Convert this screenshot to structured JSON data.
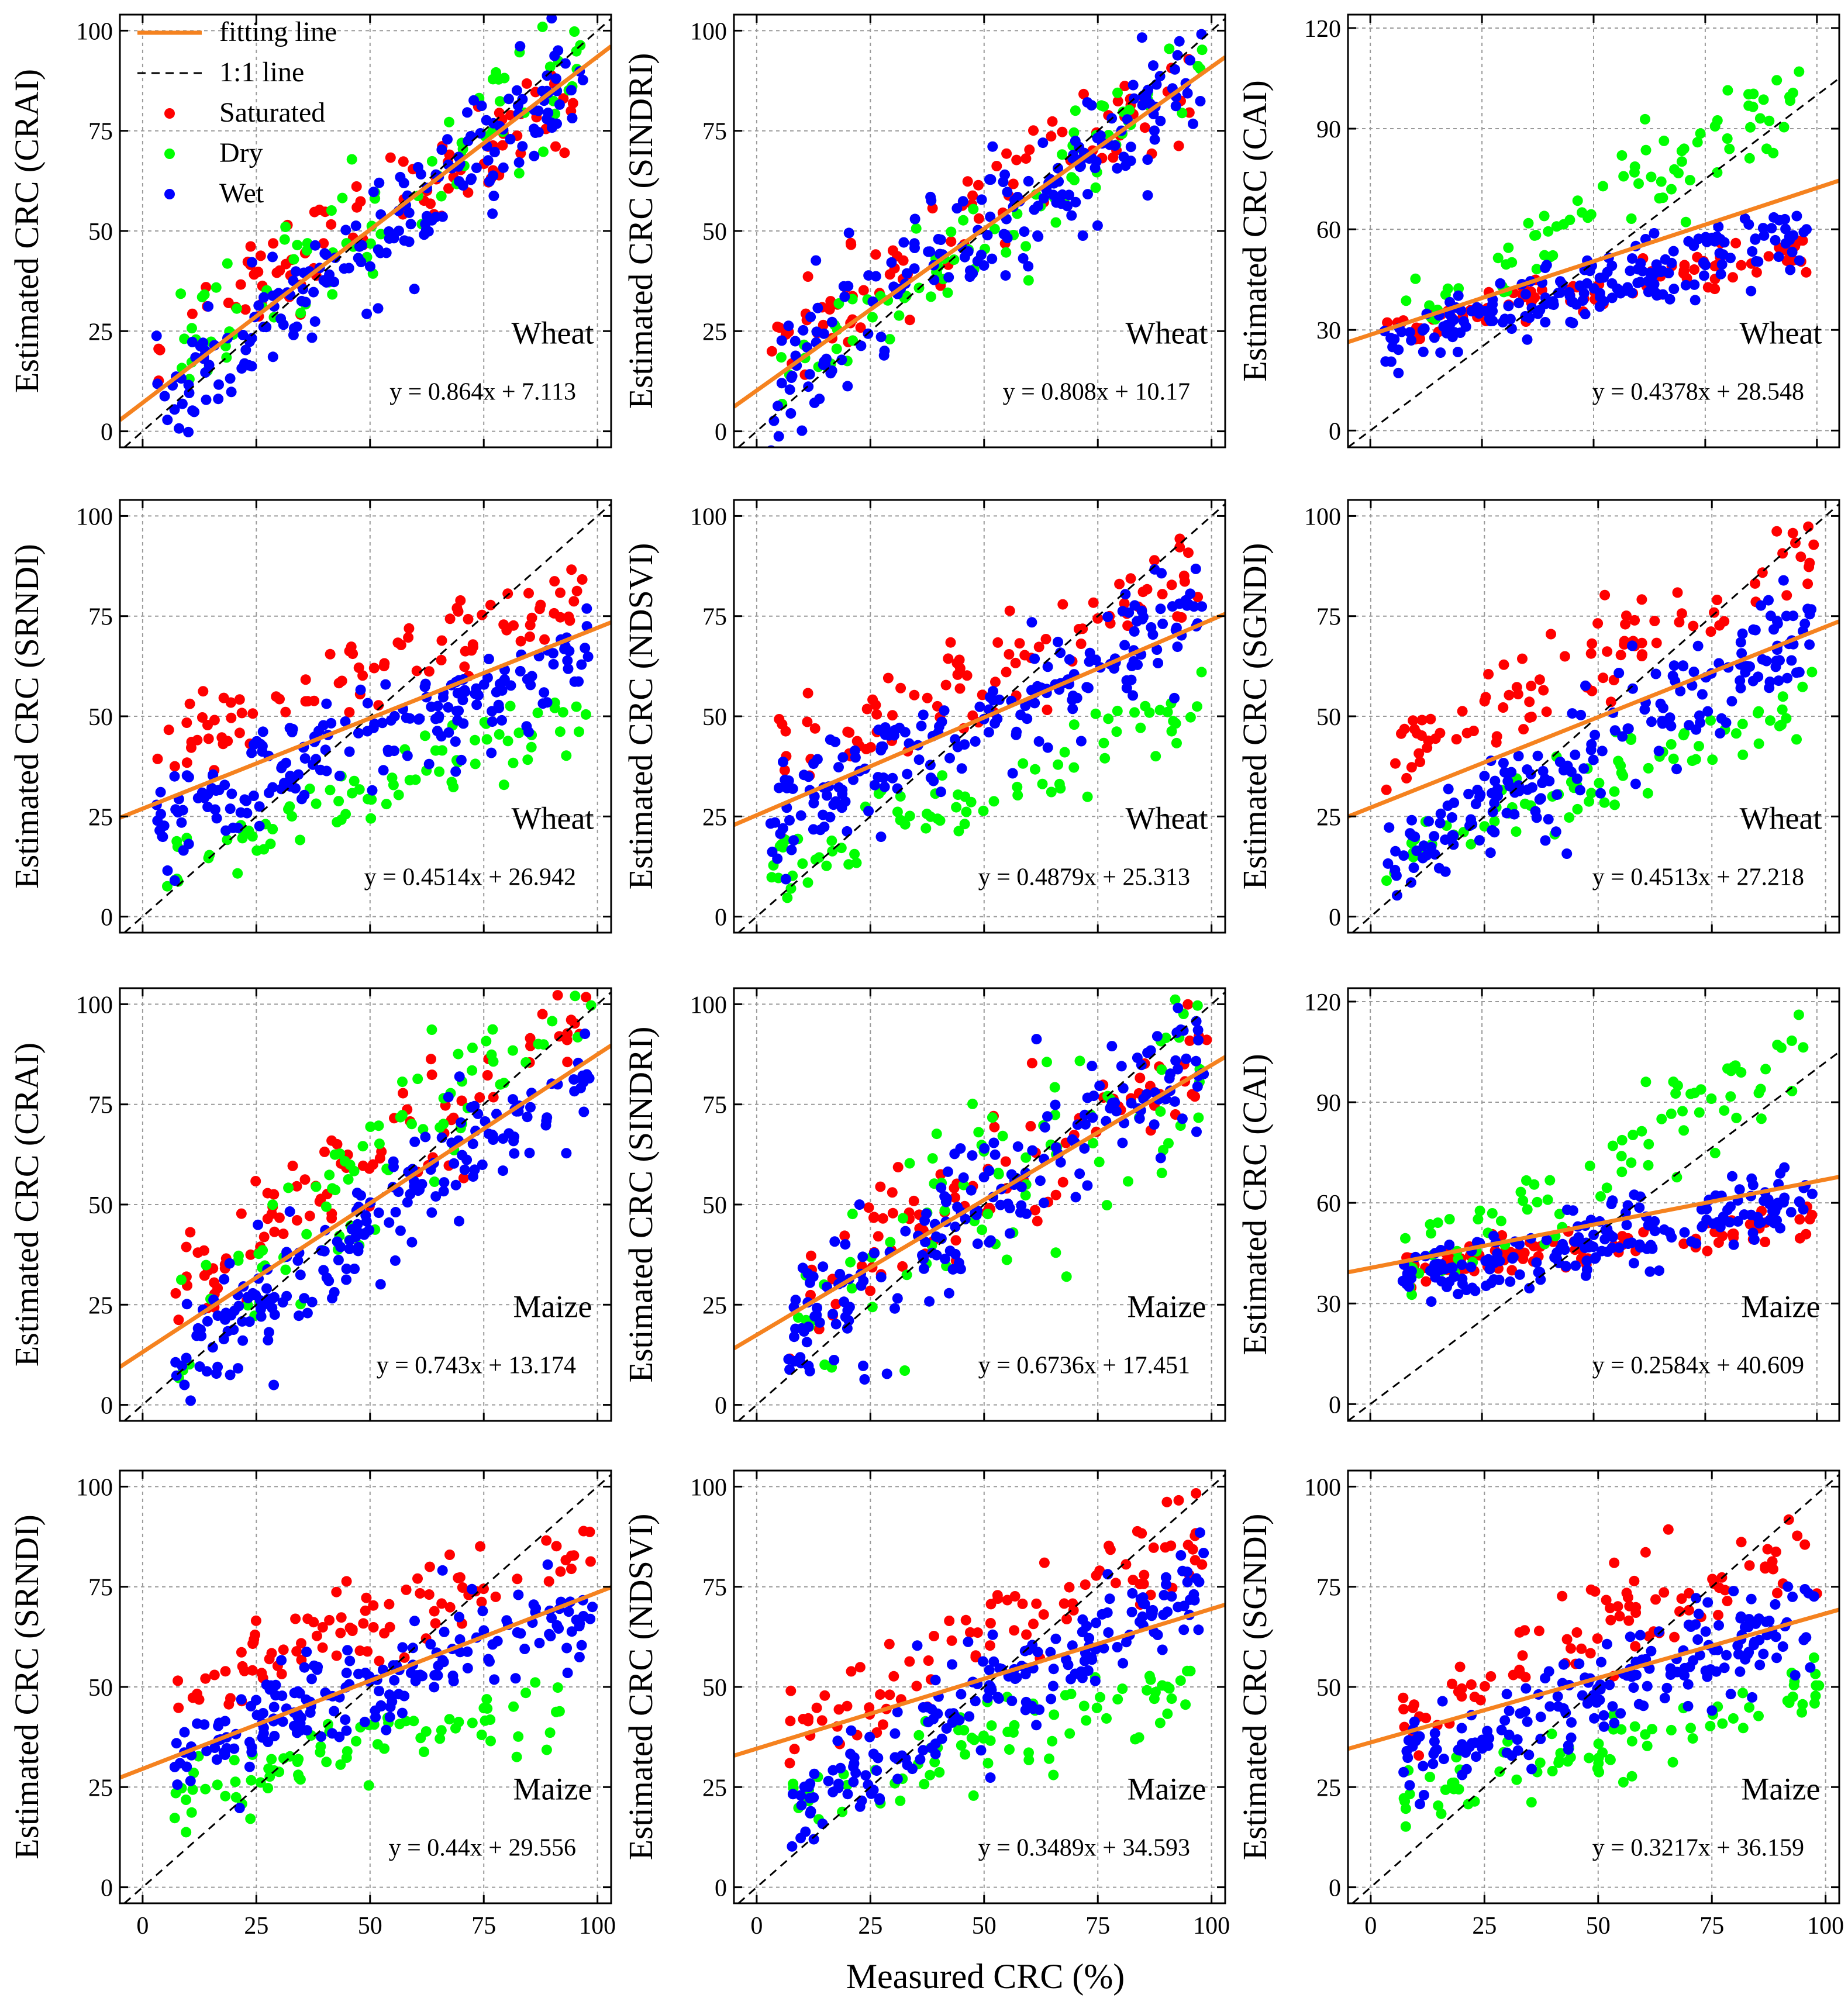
{
  "figure": {
    "xlabel": "Measured CRC (%)",
    "legend": [
      {
        "label": "fitting line",
        "kind": "line",
        "color": "#f5821f"
      },
      {
        "label": "1:1 line",
        "kind": "dash",
        "color": "#000000"
      },
      {
        "label": "Saturated",
        "kind": "point",
        "color": "#ff0000"
      },
      {
        "label": "Dry",
        "kind": "point",
        "color": "#00ff00"
      },
      {
        "label": "Wet",
        "kind": "point",
        "color": "#0000ff"
      }
    ]
  },
  "colors": {
    "saturated": "#ff0000",
    "dry": "#00ff00",
    "wet": "#0000ff",
    "fit": "#f5821f",
    "oneone": "#000000"
  },
  "chart_data": [
    {
      "type": "scatter",
      "index": "CRAI",
      "ylabel": "Estimated CRC (CRAI)",
      "crop": "Wheat",
      "equation": "y = 0.864x + 7.113",
      "slope": 0.864,
      "intercept": 7.113,
      "xlim": [
        -5,
        103
      ],
      "ylim": [
        -4,
        104
      ],
      "yticks": [
        0,
        25,
        50,
        75,
        100
      ],
      "xticks": [
        0,
        25,
        50,
        75,
        100
      ],
      "clusters": {
        "saturated": {
          "a": 0.68,
          "b": 20,
          "sd": 6,
          "x": [
            3,
            95
          ]
        },
        "dry": {
          "a": 0.88,
          "b": 10,
          "sd": 8,
          "x": [
            8,
            97
          ]
        },
        "wet": {
          "a": 0.9,
          "b": 2,
          "sd": 7,
          "x": [
            3,
            97
          ]
        }
      }
    },
    {
      "type": "scatter",
      "index": "SINDRI",
      "ylabel": "Estimated CRC (SINDRI)",
      "crop": "Wheat",
      "equation": "y = 0.808x + 10.17",
      "slope": 0.808,
      "intercept": 10.17,
      "xlim": [
        -5,
        103
      ],
      "ylim": [
        -4,
        104
      ],
      "yticks": [
        0,
        25,
        50,
        75,
        100
      ],
      "xticks": [
        0,
        25,
        50,
        75,
        100
      ],
      "clusters": {
        "saturated": {
          "a": 0.75,
          "b": 17,
          "sd": 6,
          "x": [
            3,
            98
          ]
        },
        "dry": {
          "a": 0.88,
          "b": 5,
          "sd": 7,
          "x": [
            5,
            98
          ]
        },
        "wet": {
          "a": 0.85,
          "b": 7,
          "sd": 8,
          "x": [
            3,
            98
          ]
        }
      }
    },
    {
      "type": "scatter",
      "index": "CAI",
      "ylabel": "Estimated CRC (CAI)",
      "crop": "Wheat",
      "equation": "y = 0.4378x + 28.548",
      "slope": 0.4378,
      "intercept": 28.548,
      "xlim": [
        -5,
        105
      ],
      "ylim": [
        -5,
        124
      ],
      "yticks": [
        0,
        30,
        60,
        90,
        120
      ],
      "xticks": [
        0,
        25,
        50,
        75,
        100
      ],
      "clusters": {
        "saturated": {
          "a": 0.24,
          "b": 30,
          "sd": 3,
          "x": [
            3,
            98
          ]
        },
        "dry": {
          "a": 0.78,
          "b": 27,
          "sd": 7,
          "x": [
            5,
            98
          ]
        },
        "wet": {
          "a": 0.36,
          "b": 24,
          "sd": 5,
          "x": [
            3,
            98
          ]
        }
      }
    },
    {
      "type": "scatter",
      "index": "SRNDI",
      "ylabel": "Estimated CRC (SRNDI)",
      "crop": "Wheat",
      "equation": "y = 0.4514x + 26.942",
      "slope": 0.4514,
      "intercept": 26.942,
      "xlim": [
        -5,
        103
      ],
      "ylim": [
        -4,
        104
      ],
      "yticks": [
        0,
        25,
        50,
        75,
        100
      ],
      "xticks": [
        0,
        25,
        50,
        75,
        100
      ],
      "clusters": {
        "saturated": {
          "a": 0.42,
          "b": 40,
          "sd": 5,
          "x": [
            3,
            98
          ]
        },
        "dry": {
          "a": 0.42,
          "b": 10,
          "sd": 4,
          "x": [
            3,
            98
          ]
        },
        "wet": {
          "a": 0.42,
          "b": 23,
          "sd": 6,
          "x": [
            3,
            98
          ]
        }
      }
    },
    {
      "type": "scatter",
      "index": "NDSVI",
      "ylabel": "Estimated CRC (NDSVI)",
      "crop": "Wheat",
      "equation": "y = 0.4879x + 25.313",
      "slope": 0.4879,
      "intercept": 25.313,
      "xlim": [
        -5,
        103
      ],
      "ylim": [
        -4,
        104
      ],
      "yticks": [
        0,
        25,
        50,
        75,
        100
      ],
      "xticks": [
        0,
        25,
        50,
        75,
        100
      ],
      "clusters": {
        "saturated": {
          "a": 0.52,
          "b": 36,
          "sd": 6,
          "x": [
            3,
            98
          ]
        },
        "dry": {
          "a": 0.42,
          "b": 10,
          "sd": 5,
          "x": [
            3,
            98
          ]
        },
        "wet": {
          "a": 0.52,
          "b": 23,
          "sd": 7,
          "x": [
            3,
            98
          ]
        }
      }
    },
    {
      "type": "scatter",
      "index": "SGNDI",
      "ylabel": "Estimated CRC (SGNDI)",
      "crop": "Wheat",
      "equation": "y = 0.4513x + 27.218",
      "slope": 0.4513,
      "intercept": 27.218,
      "xlim": [
        -5,
        103
      ],
      "ylim": [
        -4,
        104
      ],
      "yticks": [
        0,
        25,
        50,
        75,
        100
      ],
      "xticks": [
        0,
        25,
        50,
        75,
        100
      ],
      "clusters": {
        "saturated": {
          "a": 0.55,
          "b": 37,
          "sd": 6,
          "x": [
            3,
            98
          ]
        },
        "dry": {
          "a": 0.45,
          "b": 11,
          "sd": 5,
          "x": [
            3,
            98
          ]
        },
        "wet": {
          "a": 0.62,
          "b": 10,
          "sd": 7,
          "x": [
            3,
            98
          ]
        }
      }
    },
    {
      "type": "scatter",
      "index": "CRAI",
      "ylabel": "Estimated CRC (CRAI)",
      "crop": "Maize",
      "equation": "y = 0.743x + 13.174",
      "slope": 0.743,
      "intercept": 13.174,
      "xlim": [
        -5,
        103
      ],
      "ylim": [
        -4,
        104
      ],
      "yticks": [
        0,
        25,
        50,
        75,
        100
      ],
      "xticks": [
        0,
        25,
        50,
        75,
        100
      ],
      "clusters": {
        "saturated": {
          "a": 0.73,
          "b": 25,
          "sd": 6,
          "x": [
            7,
            99
          ]
        },
        "dry": {
          "a": 0.85,
          "b": 17,
          "sd": 9,
          "x": [
            7,
            99
          ]
        },
        "wet": {
          "a": 0.82,
          "b": 5,
          "sd": 7,
          "x": [
            7,
            99
          ]
        }
      }
    },
    {
      "type": "scatter",
      "index": "SINDRI",
      "ylabel": "Estimated CRC (SINDRI)",
      "crop": "Maize",
      "equation": "y = 0.6736x + 17.451",
      "slope": 0.6736,
      "intercept": 17.451,
      "xlim": [
        -5,
        103
      ],
      "ylim": [
        -4,
        104
      ],
      "yticks": [
        0,
        25,
        50,
        75,
        100
      ],
      "xticks": [
        0,
        25,
        50,
        75,
        100
      ],
      "clusters": {
        "saturated": {
          "a": 0.72,
          "b": 18,
          "sd": 9,
          "x": [
            7,
            99
          ]
        },
        "dry": {
          "a": 0.78,
          "b": 15,
          "sd": 12,
          "x": [
            7,
            99
          ]
        },
        "wet": {
          "a": 0.8,
          "b": 10,
          "sd": 9,
          "x": [
            7,
            99
          ]
        }
      }
    },
    {
      "type": "scatter",
      "index": "CAI",
      "ylabel": "Estimated CRC (CAI)",
      "crop": "Maize",
      "equation": "y = 0.2584x + 40.609",
      "slope": 0.2584,
      "intercept": 40.609,
      "xlim": [
        -5,
        105
      ],
      "ylim": [
        -5,
        124
      ],
      "yticks": [
        0,
        30,
        60,
        90,
        120
      ],
      "xticks": [
        0,
        25,
        50,
        75,
        100
      ],
      "clusters": {
        "saturated": {
          "a": 0.14,
          "b": 40,
          "sd": 3,
          "x": [
            7,
            99
          ]
        },
        "dry": {
          "a": 0.74,
          "b": 33,
          "sd": 7,
          "x": [
            7,
            99
          ]
        },
        "wet": {
          "a": 0.28,
          "b": 34,
          "sd": 5,
          "x": [
            7,
            99
          ]
        }
      }
    },
    {
      "type": "scatter",
      "index": "SRNDI",
      "ylabel": "Estimated CRC (SRNDI)",
      "crop": "Maize",
      "equation": "y = 0.44x + 29.556",
      "slope": 0.44,
      "intercept": 29.556,
      "xlim": [
        -5,
        103
      ],
      "ylim": [
        -4,
        104
      ],
      "yticks": [
        0,
        25,
        50,
        75,
        100
      ],
      "xticks": [
        0,
        25,
        50,
        75,
        100
      ],
      "clusters": {
        "saturated": {
          "a": 0.4,
          "b": 46,
          "sd": 6,
          "x": [
            7,
            99
          ]
        },
        "dry": {
          "a": 0.3,
          "b": 20,
          "sd": 4,
          "x": [
            7,
            99
          ]
        },
        "wet": {
          "a": 0.4,
          "b": 30,
          "sd": 6,
          "x": [
            7,
            99
          ]
        }
      }
    },
    {
      "type": "scatter",
      "index": "NDSVI",
      "ylabel": "Estimated CRC (NDSVI)",
      "crop": "Maize",
      "equation": "y = 0.3489x + 34.593",
      "slope": 0.3489,
      "intercept": 34.593,
      "xlim": [
        -5,
        103
      ],
      "ylim": [
        -4,
        104
      ],
      "yticks": [
        0,
        25,
        50,
        75,
        100
      ],
      "xticks": [
        0,
        25,
        50,
        75,
        100
      ],
      "clusters": {
        "saturated": {
          "a": 0.55,
          "b": 35,
          "sd": 6,
          "x": [
            7,
            99
          ]
        },
        "dry": {
          "a": 0.35,
          "b": 18,
          "sd": 5,
          "x": [
            7,
            99
          ]
        },
        "wet": {
          "a": 0.6,
          "b": 16,
          "sd": 7,
          "x": [
            7,
            99
          ]
        }
      }
    },
    {
      "type": "scatter",
      "index": "SGNDI",
      "ylabel": "Estimated CRC (SGNDI)",
      "crop": "Maize",
      "equation": "y = 0.3217x + 36.159",
      "slope": 0.3217,
      "intercept": 36.159,
      "xlim": [
        -5,
        103
      ],
      "ylim": [
        -4,
        104
      ],
      "yticks": [
        0,
        25,
        50,
        75,
        100
      ],
      "xticks": [
        0,
        25,
        50,
        75,
        100
      ],
      "clusters": {
        "saturated": {
          "a": 0.48,
          "b": 40,
          "sd": 6,
          "x": [
            7,
            99
          ]
        },
        "dry": {
          "a": 0.3,
          "b": 19,
          "sd": 4,
          "x": [
            7,
            99
          ]
        },
        "wet": {
          "a": 0.4,
          "b": 28,
          "sd": 6,
          "x": [
            7,
            99
          ]
        }
      }
    }
  ]
}
